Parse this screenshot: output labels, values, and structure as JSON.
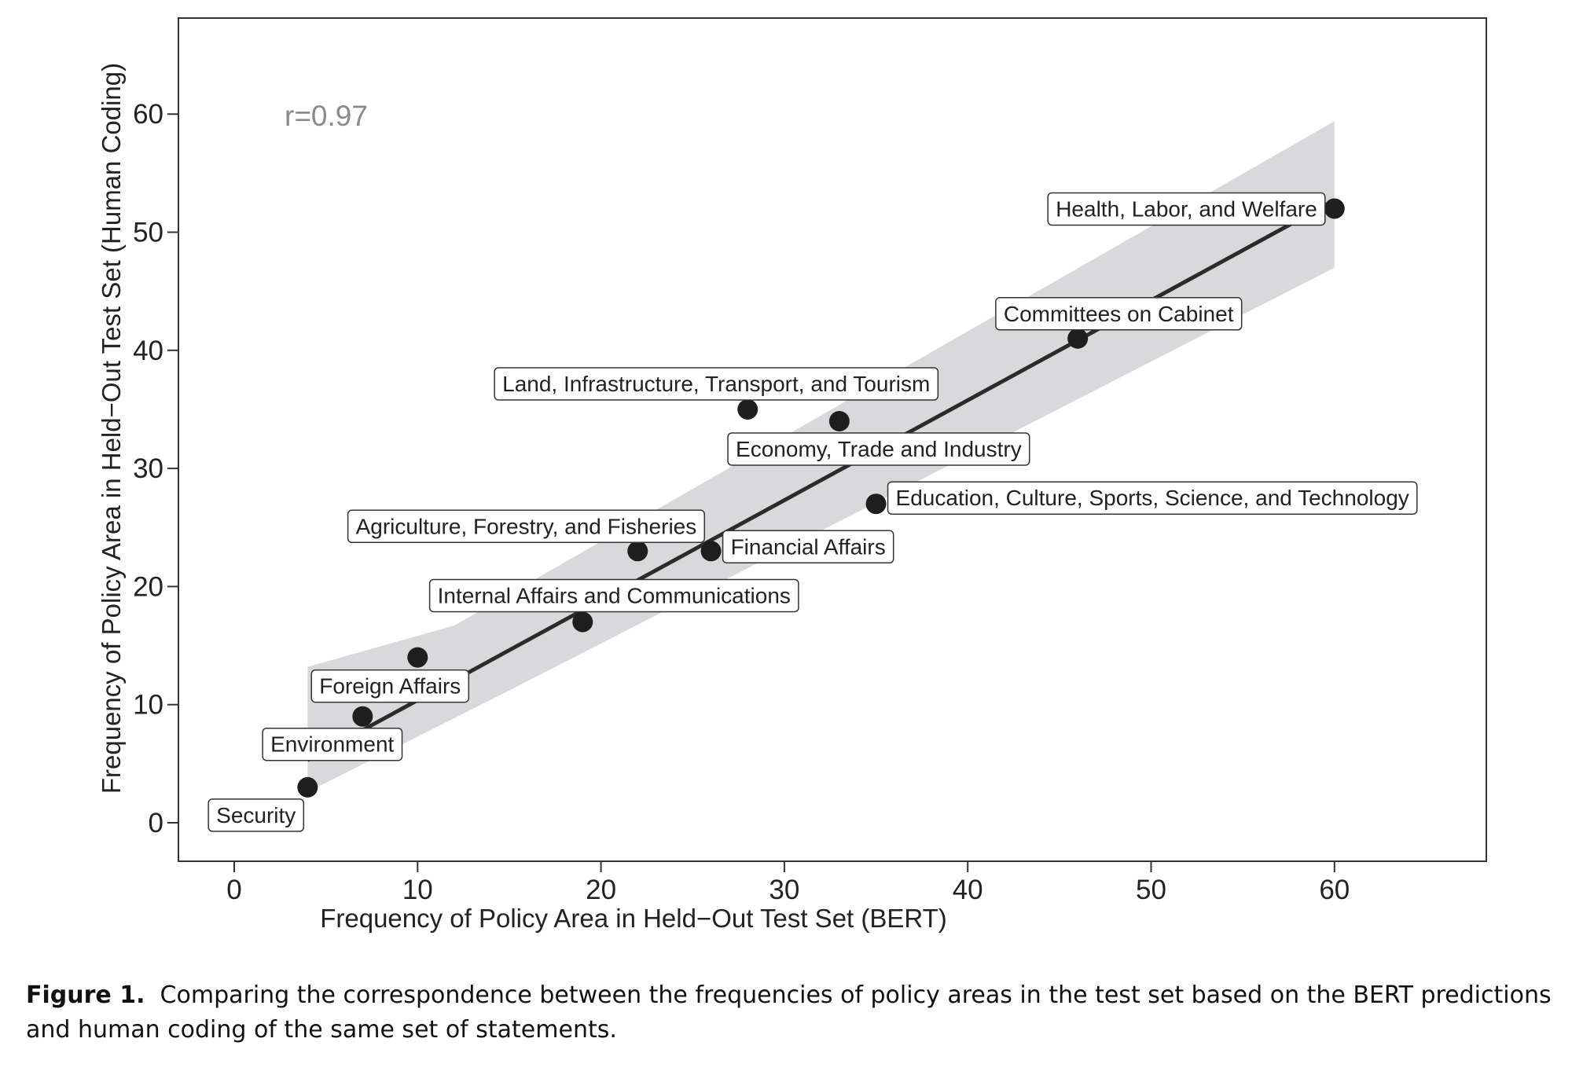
{
  "chart_data": {
    "type": "scatter",
    "title": "",
    "xlabel": "Frequency of Policy Area in Held−Out Test Set (BERT)",
    "ylabel": "Frequency of Policy Area in Held−Out Test Set (Human Coding)",
    "xlim": [
      -3.2,
      68
    ],
    "ylim": [
      -3.3,
      68
    ],
    "xticks": [
      0,
      10,
      20,
      30,
      40,
      50,
      60
    ],
    "yticks": [
      0,
      10,
      20,
      30,
      40,
      50,
      60
    ],
    "grid": false,
    "annotation": "r=0.97",
    "points": [
      {
        "label": "Security",
        "x": 4,
        "y": 3
      },
      {
        "label": "Environment",
        "x": 7,
        "y": 9
      },
      {
        "label": "Foreign Affairs",
        "x": 10,
        "y": 14
      },
      {
        "label": "Internal Affairs and Communications",
        "x": 19,
        "y": 17
      },
      {
        "label": "Agriculture, Forestry, and Fisheries",
        "x": 22,
        "y": 23
      },
      {
        "label": "Financial Affairs",
        "x": 26,
        "y": 23
      },
      {
        "label": "Education, Culture, Sports, Science, and Technology",
        "x": 35,
        "y": 27
      },
      {
        "label": "Land, Infrastructure, Transport, and Tourism",
        "x": 28,
        "y": 35
      },
      {
        "label": "Economy, Trade and Industry",
        "x": 33,
        "y": 34
      },
      {
        "label": "Committees on Cabinet",
        "x": 46,
        "y": 41
      },
      {
        "label": "Health, Labor, and Welfare",
        "x": 60,
        "y": 52
      }
    ],
    "fit": {
      "type": "linear",
      "x_range": [
        4,
        60
      ],
      "line": [
        [
          4,
          5.3
        ],
        [
          60,
          52.7
        ]
      ],
      "ci_upper": [
        [
          4,
          13.2
        ],
        [
          12,
          16.7
        ],
        [
          60,
          59.4
        ]
      ],
      "ci_lower": [
        [
          60,
          47.0
        ],
        [
          15,
          11.2
        ],
        [
          4,
          2.6
        ]
      ]
    },
    "colors": {
      "points": "#1e1e1e",
      "fit_line": "#2b2b2b",
      "ci_band": "#d9d9db",
      "annotation": "#8a8a8a"
    }
  },
  "caption": {
    "label": "Figure 1.",
    "text": "Comparing the correspondence between the frequencies of policy areas in the test set based on the BERT predictions and human coding of the same set of statements."
  }
}
